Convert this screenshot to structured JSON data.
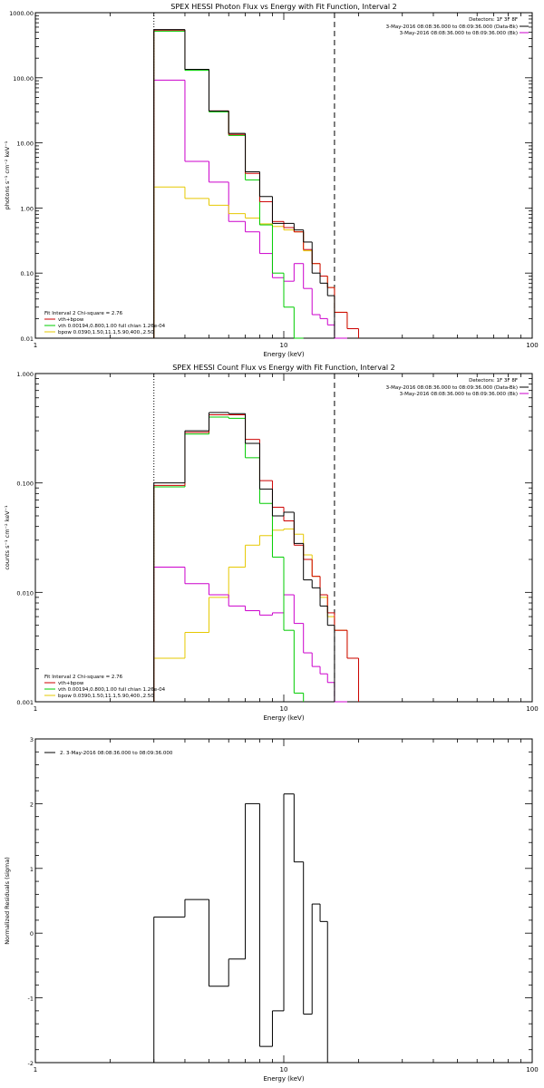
{
  "colors": {
    "frame": "#000000",
    "data": "#000000",
    "background": "#8b0000",
    "vth": "#00cc00",
    "bpow": "#e6c800",
    "total": "#cc0000",
    "bk": "#cc00cc"
  },
  "chart_data": [
    {
      "type": "line",
      "xscale": "log",
      "yscale": "log",
      "title": "SPEX HESSI Photon Flux vs Energy with Fit Function, Interval 2",
      "xlabel": "Energy (keV)",
      "ylabel": "photons s⁻¹ cm⁻² keV⁻¹",
      "xlim": [
        1,
        100
      ],
      "ylim": [
        0.01,
        1000
      ],
      "x_ticks": [
        {
          "v": 1,
          "t": "1"
        },
        {
          "v": 10,
          "t": "10"
        },
        {
          "v": 100,
          "t": "100"
        }
      ],
      "y_ticks": [
        {
          "v": 0.01,
          "t": "0.01"
        },
        {
          "v": 0.1,
          "t": "0.10"
        },
        {
          "v": 1,
          "t": "1.00"
        },
        {
          "v": 10,
          "t": "10.00"
        },
        {
          "v": 100,
          "t": "100.00"
        },
        {
          "v": 1000,
          "t": "1000.00"
        }
      ],
      "vlines": [
        {
          "x": 3.0,
          "style": "dotted"
        },
        {
          "x": 16.0,
          "style": "dashed"
        }
      ],
      "legend_top": {
        "placement": "top-right",
        "header": "Detectors: 1F 3F 8F",
        "entries": [
          {
            "label": "3-May-2016 08:08:36.000 to 08:09:36.000 (Data-Bk)",
            "color": "data"
          },
          {
            "label": "3-May-2016 08:08:36.000 to 08:09:36.000 (Bk)",
            "color": "bk"
          }
        ]
      },
      "legend_bottom": {
        "placement": "bottom-left",
        "header": "Fit Interval  2   Chi-square = 2.76",
        "entries": [
          {
            "label": "vth+bpow",
            "color": "total"
          },
          {
            "label": "vth 0.00194,0.800,1.00   full chian 1.26e-04",
            "color": "vth"
          },
          {
            "label": "bpow 0.0390,1.50,11.1,5.90,400.,2.50",
            "color": "bpow"
          }
        ]
      },
      "edges": [
        3.0,
        4.0,
        5.0,
        6.0,
        7.0,
        8.0,
        9.0,
        10.0,
        11.0,
        12.0,
        13.0,
        14.0,
        15.0,
        16.0,
        18.0,
        20.0
      ],
      "series": [
        {
          "key": "bk",
          "color": "bk",
          "values": [
            92,
            5.2,
            2.5,
            0.62,
            0.43,
            0.2,
            0.085,
            0.075,
            0.14,
            0.058,
            0.023,
            0.02,
            0.016,
            0.01,
            null
          ]
        },
        {
          "key": "bpow",
          "color": "bpow",
          "values": [
            2.1,
            1.4,
            1.1,
            0.82,
            0.7,
            0.57,
            0.52,
            0.46,
            0.43,
            0.22,
            0.14,
            0.09,
            0.06,
            0.025,
            0.014
          ]
        },
        {
          "key": "vth",
          "color": "vth",
          "values": [
            520,
            130,
            30,
            13,
            2.7,
            0.55,
            0.1,
            0.03,
            0.01,
            null,
            null,
            null,
            null,
            null,
            null
          ]
        },
        {
          "key": "total",
          "color": "total",
          "values": [
            540,
            135,
            31,
            13.5,
            3.4,
            1.25,
            0.62,
            0.5,
            0.43,
            0.23,
            0.14,
            0.09,
            0.06,
            0.025,
            0.014
          ]
        },
        {
          "key": "data",
          "color": "data",
          "values": [
            550,
            135,
            31,
            14,
            3.6,
            1.5,
            0.58,
            0.58,
            0.46,
            0.3,
            0.1,
            0.07,
            0.045,
            null,
            null
          ]
        }
      ]
    },
    {
      "type": "line",
      "xscale": "log",
      "yscale": "log",
      "title": "SPEX HESSI Count Flux vs Energy with Fit Function, Interval 2",
      "xlabel": "Energy (keV)",
      "ylabel": "counts s⁻¹ cm⁻² keV⁻¹",
      "xlim": [
        1,
        100
      ],
      "ylim": [
        0.001,
        1
      ],
      "x_ticks": [
        {
          "v": 1,
          "t": "1"
        },
        {
          "v": 10,
          "t": "10"
        },
        {
          "v": 100,
          "t": "100"
        }
      ],
      "y_ticks": [
        {
          "v": 0.001,
          "t": "0.001"
        },
        {
          "v": 0.01,
          "t": "0.010"
        },
        {
          "v": 0.1,
          "t": "0.100"
        },
        {
          "v": 1,
          "t": "1.000"
        }
      ],
      "vlines": [
        {
          "x": 3.0,
          "style": "dotted"
        },
        {
          "x": 16.0,
          "style": "dashed"
        }
      ],
      "legend_top": {
        "placement": "top-right",
        "header": "Detectors: 1F 3F 8F",
        "entries": [
          {
            "label": "3-May-2016 08:08:36.000 to 08:09:36.000 (Data-Bk)",
            "color": "data"
          },
          {
            "label": "3-May-2016 08:08:36.000 to 08:09:36.000 (Bk)",
            "color": "bk"
          }
        ]
      },
      "legend_bottom": {
        "placement": "bottom-left",
        "header": "Fit Interval  2   Chi-square = 2.76",
        "entries": [
          {
            "label": "vth+bpow",
            "color": "total"
          },
          {
            "label": "vth 0.00194,0.800,1.00   full chian 1.26e-04",
            "color": "vth"
          },
          {
            "label": "bpow 0.0390,1.50,11.1,5.90,400.,2.50",
            "color": "bpow"
          }
        ]
      },
      "edges": [
        3.0,
        4.0,
        5.0,
        6.0,
        7.0,
        8.0,
        9.0,
        10.0,
        11.0,
        12.0,
        13.0,
        14.0,
        15.0,
        16.0,
        18.0,
        20.0
      ],
      "series": [
        {
          "key": "bpow",
          "color": "bpow",
          "values": [
            0.0025,
            0.0043,
            0.009,
            0.017,
            0.027,
            0.033,
            0.037,
            0.038,
            0.034,
            0.022,
            0.014,
            0.009,
            0.006,
            0.0045,
            0.0025
          ]
        },
        {
          "key": "bk",
          "color": "bk",
          "values": [
            0.017,
            0.012,
            0.0095,
            0.0075,
            0.0068,
            0.0062,
            0.0065,
            0.0095,
            0.0052,
            0.0028,
            0.0021,
            0.0018,
            0.0015,
            0.001,
            null
          ]
        },
        {
          "key": "vth",
          "color": "vth",
          "values": [
            0.092,
            0.28,
            0.4,
            0.39,
            0.17,
            0.065,
            0.021,
            0.0045,
            0.0012,
            null,
            null,
            null,
            null,
            null,
            null
          ]
        },
        {
          "key": "total",
          "color": "total",
          "values": [
            0.095,
            0.29,
            0.42,
            0.42,
            0.25,
            0.105,
            0.06,
            0.045,
            0.027,
            0.02,
            0.014,
            0.0095,
            0.0065,
            0.0045,
            0.0025
          ]
        },
        {
          "key": "data",
          "color": "data",
          "values": [
            0.1,
            0.3,
            0.44,
            0.43,
            0.23,
            0.088,
            0.05,
            0.054,
            0.028,
            0.013,
            0.011,
            0.0075,
            0.005,
            null,
            null
          ]
        }
      ]
    },
    {
      "type": "line",
      "xscale": "log",
      "yscale": "linear",
      "xlabel": "Energy (keV)",
      "ylabel": "Normalized Residuals (sigma)",
      "xlim": [
        1,
        100
      ],
      "ylim": [
        -2,
        3
      ],
      "x_ticks": [
        {
          "v": 1,
          "t": "1"
        },
        {
          "v": 10,
          "t": "10"
        },
        {
          "v": 100,
          "t": "100"
        }
      ],
      "y_ticks": [
        {
          "v": -2,
          "t": "-2"
        },
        {
          "v": -1,
          "t": "-1"
        },
        {
          "v": 0,
          "t": "0"
        },
        {
          "v": 1,
          "t": "1"
        },
        {
          "v": 2,
          "t": "2"
        },
        {
          "v": 3,
          "t": "3"
        }
      ],
      "legend_top": {
        "placement": "top-left",
        "entries": [
          {
            "label": "2.  3-May-2016 08:08:36.000 to 08:09:36.000",
            "color": "data"
          }
        ]
      },
      "edges": [
        3.0,
        4.0,
        5.0,
        6.0,
        7.0,
        8.0,
        9.0,
        10.0,
        11.0,
        12.0,
        13.0,
        14.0,
        15.0,
        16.0
      ],
      "series": [
        {
          "key": "residuals",
          "color": "data",
          "values": [
            0.25,
            0.52,
            -0.82,
            -0.4,
            2.0,
            -1.75,
            -1.2,
            2.15,
            1.1,
            -1.25,
            0.45,
            0.18,
            null
          ]
        }
      ]
    }
  ]
}
